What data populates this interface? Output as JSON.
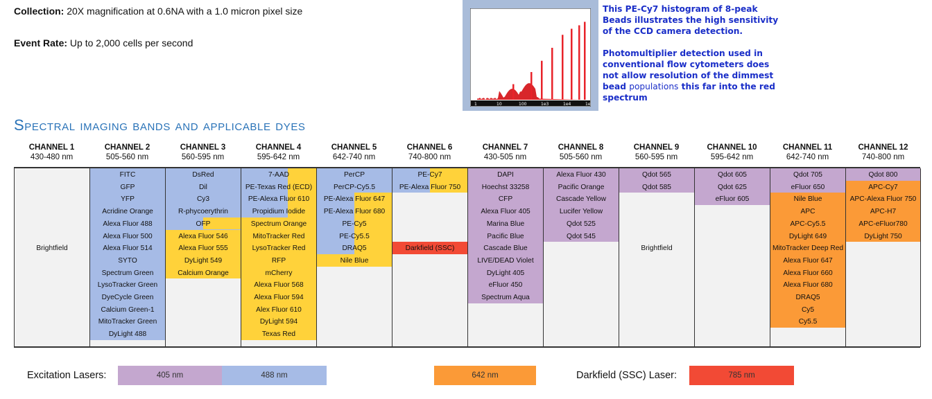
{
  "collection": {
    "label": "Collection:",
    "text": " 20X magnification at 0.6NA with a 1.0 micron pixel size"
  },
  "event_rate": {
    "label": "Event Rate:",
    "text": " Up to 2,000  cells per second"
  },
  "histogram": {
    "axis_labels": [
      "1",
      "10",
      "100",
      "1e3",
      "1e4",
      "1e5"
    ],
    "peak_heights": [
      0.18,
      0.32,
      0.45,
      0.6,
      0.75,
      0.82,
      0.86,
      0.9
    ]
  },
  "note1": "This PE-Cy7 histogram of 8-peak Beads illustrates the high sensitivity of the CCD camera detection.",
  "note2": {
    "part1": "Photomultiplier detection used in conventional flow cytometers does not allow resolution of the dimmest bead",
    "part2": "populations",
    "part3": " this far into the red spectrum"
  },
  "section_title": "Spectral imaging bands and applicable dyes",
  "colors": {
    "405": "#c4a7cf",
    "488": "#a6bbe6",
    "561": "#ffd23a",
    "642": "#fb9a37",
    "785": "#f24a35",
    "none": "#f2f2f2"
  },
  "channels": [
    {
      "name": "CHANNEL 1",
      "range": "430-480 nm",
      "center_label": "Brightfield",
      "bands": [],
      "dyes": []
    },
    {
      "name": "CHANNEL 2",
      "range": "505-560 nm",
      "center_label": "",
      "bands": [
        {
          "color": "488",
          "from": 0,
          "to": 14
        }
      ],
      "dyes": [
        "FITC",
        "GFP",
        "YFP",
        "Acridine Orange",
        "Alexa Fluor 488",
        "Alexa Fluor 500",
        "Alexa Fluor 514",
        "SYTO",
        "Spectrum Green",
        "LysoTracker Green",
        "DyeCycle Green",
        "Calcium Green-1",
        "MitoTracker Green",
        "DyLight 488"
      ]
    },
    {
      "name": "CHANNEL 3",
      "range": "560-595 nm",
      "center_label": "",
      "bands": [
        {
          "color": "488",
          "from": 0,
          "to": 5
        },
        {
          "color": "561",
          "from": 5,
          "to": 9
        },
        {
          "color": "488",
          "from": 0,
          "to": 1,
          "width": 0.5
        },
        {
          "color": "561",
          "from": 4,
          "to": 5,
          "start": 0.5
        }
      ],
      "dyes": [
        "DsRed",
        "Dil",
        "Cy3",
        "R-phycoerythrin",
        "OFP",
        "Alexa Fluor 546",
        "Alexa Fluor 555",
        "DyLight 549",
        "Calcium Orange"
      ]
    },
    {
      "name": "CHANNEL 4",
      "range": "595-642 nm",
      "center_label": "",
      "bands": [
        {
          "color": "561",
          "from": 0,
          "to": 14
        },
        {
          "color": "488",
          "from": 0,
          "to": 4,
          "width": 0.62
        }
      ],
      "dyes": [
        "7-AAD",
        "PE-Texas Red (ECD)",
        "PE-Alexa Fluor 610",
        "Propidium Iodide",
        "Spectrum Orange",
        "MitoTracker Red",
        "LysoTracker Red",
        "RFP",
        "mCherry",
        "Alexa Fluor 568",
        "Alexa Fluor 594",
        "Alex Fluor 610",
        "DyLight 594",
        "Texas Red"
      ]
    },
    {
      "name": "CHANNEL 5",
      "range": "642-740 nm",
      "center_label": "",
      "bands": [
        {
          "color": "488",
          "from": 0,
          "to": 7
        },
        {
          "color": "561",
          "from": 2,
          "to": 8,
          "start": 0.5
        },
        {
          "color": "561",
          "from": 7,
          "to": 8
        }
      ],
      "dyes": [
        "PerCP",
        "PerCP-Cy5.5",
        "PE-Alexa Fluor 647",
        "PE-Alexa Fluor 680",
        "PE-Cy5",
        "PE-Cy5.5",
        "DRAQ5",
        "Nile Blue"
      ]
    },
    {
      "name": "CHANNEL 6",
      "range": "740-800 nm",
      "center_label": "",
      "bands": [
        {
          "color": "488",
          "from": 0,
          "to": 2
        },
        {
          "color": "561",
          "from": 0,
          "to": 2,
          "start": 0.5
        },
        {
          "color": "785",
          "from": 6,
          "to": 7
        }
      ],
      "dyes": [
        "PE-Cy7",
        "PE-Alexa Fluor 750",
        "",
        "",
        "",
        "",
        "Darkfield (SSC)"
      ]
    },
    {
      "name": "CHANNEL 7",
      "range": "430-505 nm",
      "center_label": "",
      "bands": [
        {
          "color": "405",
          "from": 0,
          "to": 11
        }
      ],
      "dyes": [
        "DAPI",
        "Hoechst 33258",
        "CFP",
        "Alexa Fluor 405",
        "Marina Blue",
        "Pacific Blue",
        "Cascade Blue",
        "LIVE/DEAD Violet",
        "DyLight 405",
        "eFluor 450",
        "Spectrum Aqua"
      ]
    },
    {
      "name": "CHANNEL 8",
      "range": "505-560 nm",
      "center_label": "",
      "bands": [
        {
          "color": "405",
          "from": 0,
          "to": 6
        }
      ],
      "dyes": [
        "Alexa Fluor 430",
        "Pacific Orange",
        "Cascade Yellow",
        "Lucifer Yellow",
        "Qdot 525",
        "Qdot 545"
      ]
    },
    {
      "name": "CHANNEL 9",
      "range": "560-595 nm",
      "center_label": "Brightfield",
      "bands": [
        {
          "color": "405",
          "from": 0,
          "to": 2
        }
      ],
      "dyes": [
        "Qdot 565",
        "Qdot 585"
      ]
    },
    {
      "name": "CHANNEL 10",
      "range": "595-642 nm",
      "center_label": "",
      "bands": [
        {
          "color": "405",
          "from": 0,
          "to": 3
        }
      ],
      "dyes": [
        "Qdot 605",
        "Qdot 625",
        "eFluor 605"
      ]
    },
    {
      "name": "CHANNEL 11",
      "range": "642-740 nm",
      "center_label": "",
      "bands": [
        {
          "color": "405",
          "from": 0,
          "to": 2
        },
        {
          "color": "642",
          "from": 2,
          "to": 13
        }
      ],
      "dyes": [
        "Qdot 705",
        "eFluor 650",
        "Nile Blue",
        "APC",
        "APC-Cy5.5",
        "DyLight 649",
        "MitoTracker Deep Red",
        "Alexa Fluor 647",
        "Alexa Fluor 660",
        "Alexa Fluor 680",
        "DRAQ5",
        "Cy5",
        "Cy5.5"
      ]
    },
    {
      "name": "CHANNEL 12",
      "range": "740-800 nm",
      "center_label": "",
      "bands": [
        {
          "color": "405",
          "from": 0,
          "to": 1
        },
        {
          "color": "642",
          "from": 1,
          "to": 6
        }
      ],
      "dyes": [
        "Qdot 800",
        "APC-Cy7",
        "APC-Alexa Fluor 750",
        "APC-H7",
        "APC-eFluor780",
        "DyLight 750"
      ]
    }
  ],
  "legend": {
    "excitation_label": "Excitation Lasers:",
    "boxes": [
      {
        "text": "405 nm",
        "color": "405"
      },
      {
        "text": "488 nm",
        "color": "488"
      },
      {
        "text": "642 nm",
        "color": "642"
      }
    ],
    "darkfield_label": "Darkfield (SSC) Laser:",
    "darkfield_box": {
      "text": "785 nm",
      "color": "785"
    }
  }
}
